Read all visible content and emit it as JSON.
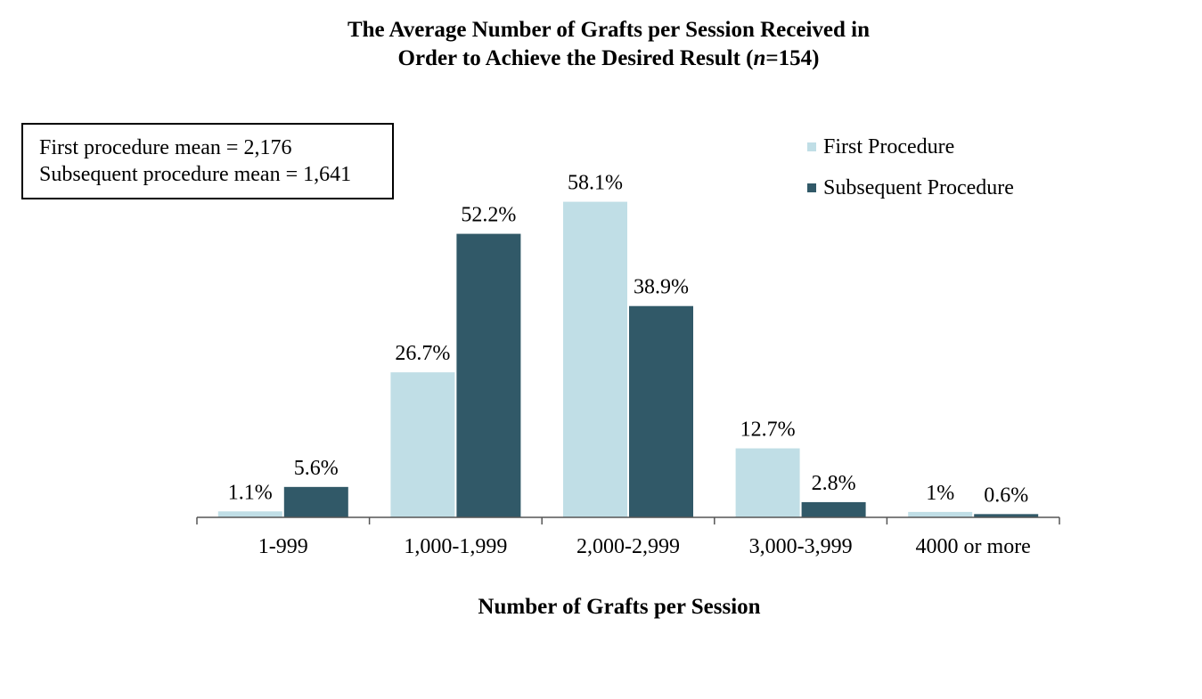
{
  "title": {
    "line1": "The Average Number of Grafts per Session Received in",
    "line2_pre": "Order to Achieve the Desired Result (",
    "line2_n": "n",
    "line2_post": "=154)"
  },
  "annotation": {
    "line1": "First procedure mean = 2,176",
    "line2": "Subsequent procedure mean = 1,641"
  },
  "colors": {
    "first": "#c0dee6",
    "subsequent": "#315968",
    "axis": "#555555"
  },
  "chart_data": {
    "type": "bar",
    "title": "The Average Number of Grafts per Session Received in Order to Achieve the Desired Result (n=154)",
    "xlabel": "Number of Grafts per Session",
    "ylabel": "",
    "categories": [
      "1-999",
      "1,000-1,999",
      "2,000-2,999",
      "3,000-3,999",
      "4000 or more"
    ],
    "series": [
      {
        "name": "First Procedure",
        "values": [
          1.1,
          26.7,
          58.1,
          12.7,
          1.0
        ],
        "labels": [
          "1.1%",
          "26.7%",
          "58.1%",
          "12.7%",
          "1%"
        ]
      },
      {
        "name": "Subsequent Procedure",
        "values": [
          5.6,
          52.2,
          38.9,
          2.8,
          0.6
        ],
        "labels": [
          "5.6%",
          "52.2%",
          "38.9%",
          "2.8%",
          "0.6%"
        ]
      }
    ],
    "ylim": [
      0,
      60
    ],
    "grid": false,
    "legend_position": "top-right"
  }
}
